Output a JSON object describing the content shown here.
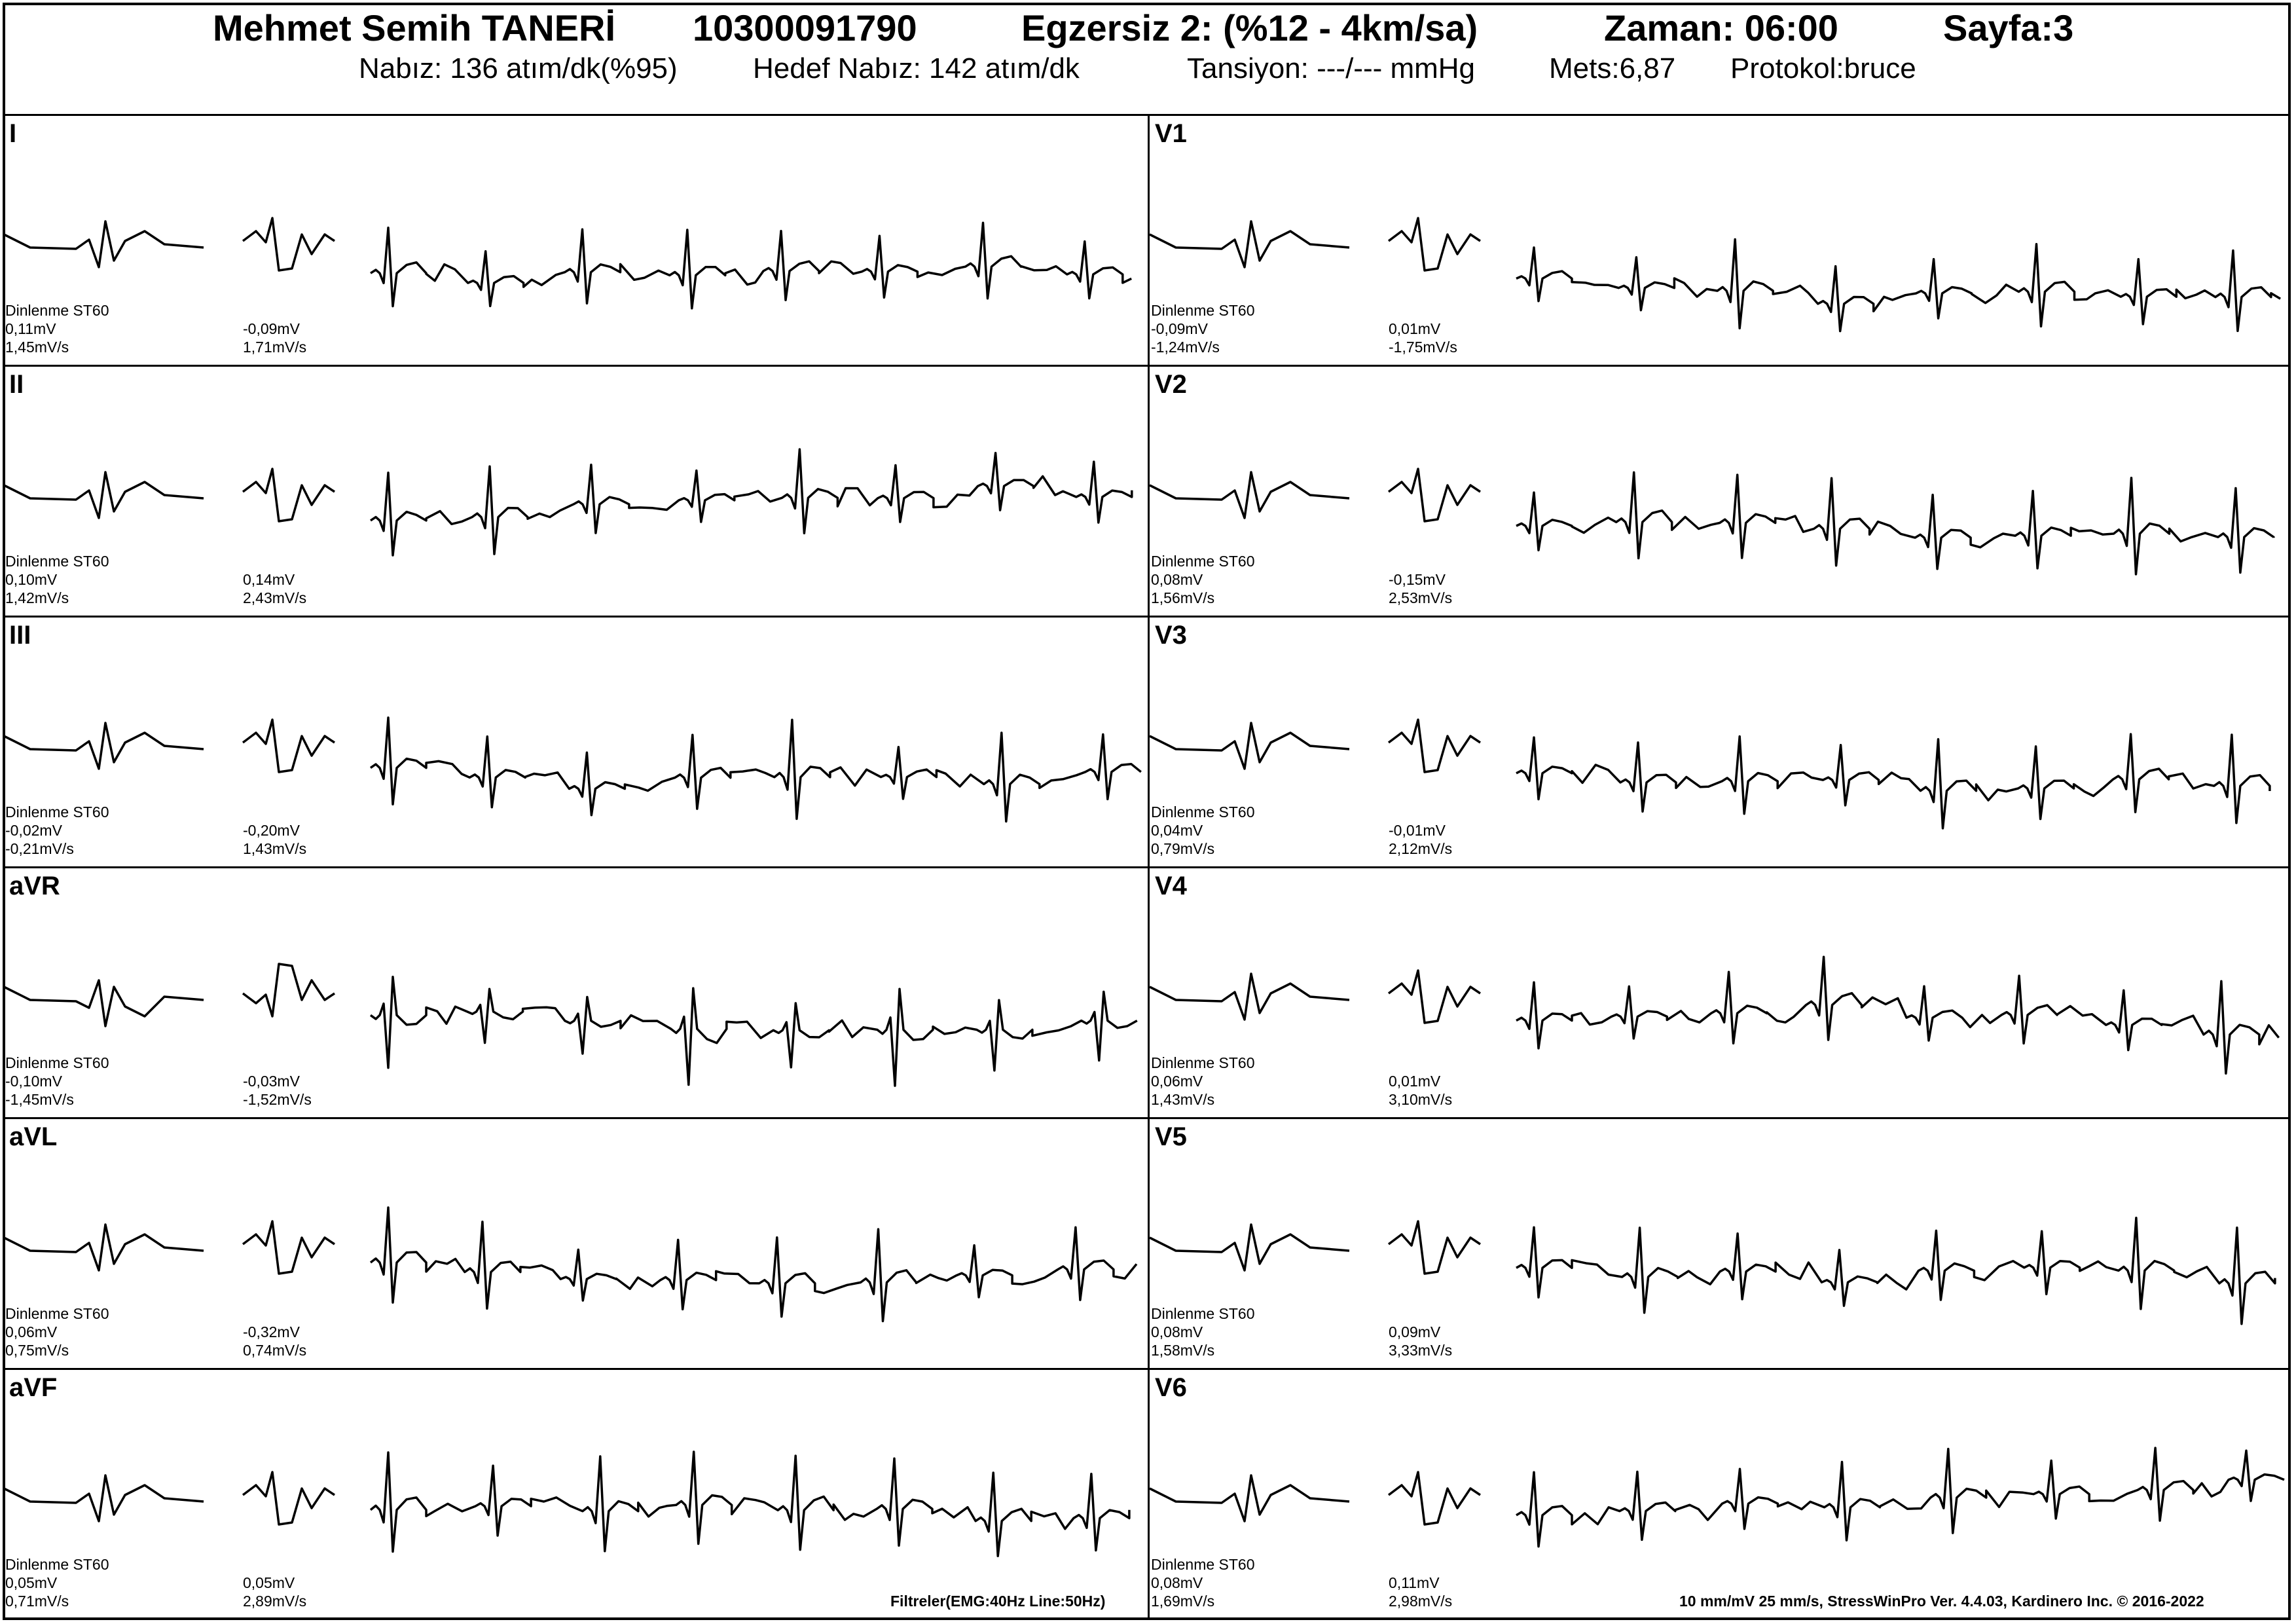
{
  "header": {
    "patient_name": "Mehmet Semih  TANERİ",
    "patient_id": "10300091790",
    "stage": "Egzersiz 2: (%12 - 4km/sa)",
    "time": "Zaman: 06:00",
    "page": "Sayfa:3",
    "heart_rate": "Nabız: 136 atım/dk(%95)",
    "target_hr": "Hedef Nabız: 142 atım/dk",
    "blood_pressure": "Tansiyon: ---/--- mmHg",
    "mets": "Mets:6,87",
    "protocol": "Protokol:bruce"
  },
  "leads": [
    {
      "name": "I",
      "rest_label": "Dinlenme ST60",
      "rest_st": "0,11mV",
      "rest_slope": "1,45mV/s",
      "cur_st": "-0,09mV",
      "cur_slope": "1,71mV/s"
    },
    {
      "name": "II",
      "rest_label": "Dinlenme ST60",
      "rest_st": "0,10mV",
      "rest_slope": "1,42mV/s",
      "cur_st": "0,14mV",
      "cur_slope": "2,43mV/s"
    },
    {
      "name": "III",
      "rest_label": "Dinlenme ST60",
      "rest_st": "-0,02mV",
      "rest_slope": "-0,21mV/s",
      "cur_st": "-0,20mV",
      "cur_slope": "1,43mV/s"
    },
    {
      "name": "aVR",
      "rest_label": "Dinlenme ST60",
      "rest_st": "-0,10mV",
      "rest_slope": "-1,45mV/s",
      "cur_st": "-0,03mV",
      "cur_slope": "-1,52mV/s"
    },
    {
      "name": "aVL",
      "rest_label": "Dinlenme ST60",
      "rest_st": "0,06mV",
      "rest_slope": "0,75mV/s",
      "cur_st": "-0,32mV",
      "cur_slope": "0,74mV/s"
    },
    {
      "name": "aVF",
      "rest_label": "Dinlenme ST60",
      "rest_st": "0,05mV",
      "rest_slope": "0,71mV/s",
      "cur_st": "0,05mV",
      "cur_slope": "2,89mV/s"
    },
    {
      "name": "V1",
      "rest_label": "Dinlenme ST60",
      "rest_st": "-0,09mV",
      "rest_slope": "-1,24mV/s",
      "cur_st": "0,01mV",
      "cur_slope": "-1,75mV/s"
    },
    {
      "name": "V2",
      "rest_label": "Dinlenme ST60",
      "rest_st": "0,08mV",
      "rest_slope": "1,56mV/s",
      "cur_st": "-0,15mV",
      "cur_slope": "2,53mV/s"
    },
    {
      "name": "V3",
      "rest_label": "Dinlenme ST60",
      "rest_st": "0,04mV",
      "rest_slope": "0,79mV/s",
      "cur_st": "-0,01mV",
      "cur_slope": "2,12mV/s"
    },
    {
      "name": "V4",
      "rest_label": "Dinlenme ST60",
      "rest_st": "0,06mV",
      "rest_slope": "1,43mV/s",
      "cur_st": "0,01mV",
      "cur_slope": "3,10mV/s"
    },
    {
      "name": "V5",
      "rest_label": "Dinlenme ST60",
      "rest_st": "0,08mV",
      "rest_slope": "1,58mV/s",
      "cur_st": "0,09mV",
      "cur_slope": "3,33mV/s"
    },
    {
      "name": "V6",
      "rest_label": "Dinlenme ST60",
      "rest_st": "0,08mV",
      "rest_slope": "1,69mV/s",
      "cur_st": "0,11mV",
      "cur_slope": "2,98mV/s"
    }
  ],
  "footer": {
    "filters": "Filtreler(EMG:40Hz  Line:50Hz)",
    "info": "10 mm/mV  25 mm/s,   StressWinPro Ver. 4.4.03,  Kardinero Inc. © 2016-2022"
  }
}
